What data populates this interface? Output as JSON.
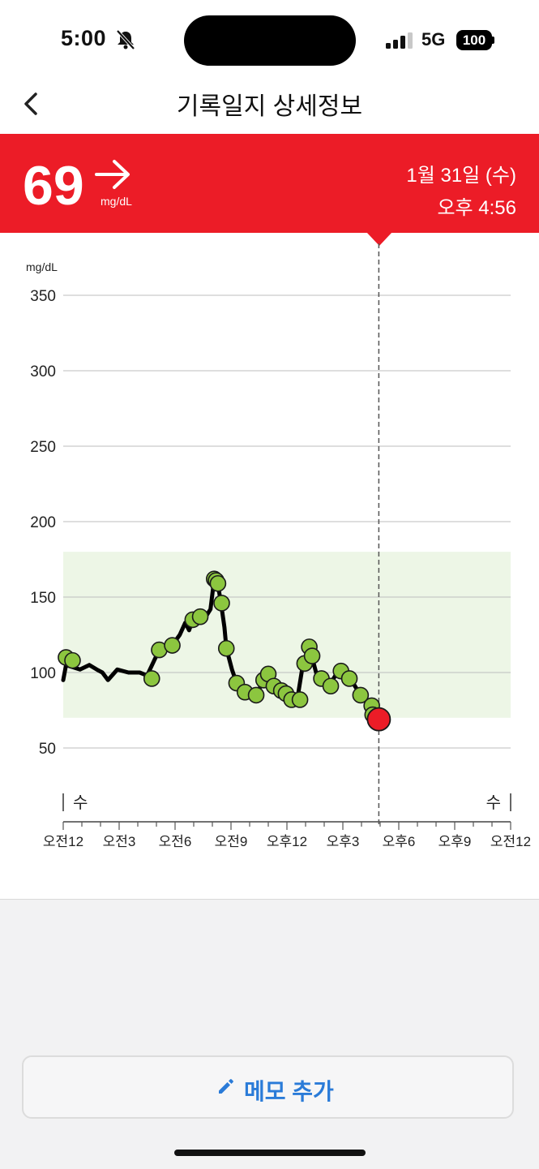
{
  "status": {
    "time": "5:00",
    "network": "5G",
    "battery": "100"
  },
  "nav": {
    "title": "기록일지 상세정보"
  },
  "reading": {
    "value": "69",
    "unit": "mg/dL",
    "trend": "steady",
    "date": "1월 31일 (수)",
    "time": "오후 4:56"
  },
  "colors": {
    "accent": "#ec1c27",
    "target_range": "#edf6e6",
    "point": "#8cc63f",
    "memo": "#2a7bd8"
  },
  "chart_data": {
    "type": "line",
    "ylabel": "mg/dL",
    "ylim": [
      0,
      350
    ],
    "yticks": [
      50,
      100,
      150,
      200,
      250,
      300,
      350
    ],
    "xlim": [
      0,
      24
    ],
    "xticks": [
      0,
      3,
      6,
      9,
      12,
      15,
      18,
      21,
      24
    ],
    "xtick_labels": [
      "오전12",
      "오전3",
      "오전6",
      "오전9",
      "오후12",
      "오후3",
      "오후6",
      "오후9",
      "오전12"
    ],
    "day_labels": [
      "수",
      "수"
    ],
    "target_range": [
      70,
      180
    ],
    "current_marker": {
      "x": 16.93,
      "y": 69
    },
    "line": [
      [
        0,
        95
      ],
      [
        0.15,
        105
      ],
      [
        0.9,
        102
      ],
      [
        1.4,
        105
      ],
      [
        1.8,
        102
      ],
      [
        2.1,
        100
      ],
      [
        2.4,
        95
      ],
      [
        2.9,
        102
      ],
      [
        3.5,
        100
      ],
      [
        4.1,
        100
      ],
      [
        4.5,
        98
      ],
      [
        5.15,
        115
      ],
      [
        5.85,
        118
      ],
      [
        6.25,
        125
      ],
      [
        6.55,
        133
      ],
      [
        6.75,
        128
      ],
      [
        6.95,
        135
      ],
      [
        7.3,
        137
      ],
      [
        7.7,
        138
      ],
      [
        7.9,
        142
      ],
      [
        8.1,
        162
      ],
      [
        8.3,
        158
      ],
      [
        8.45,
        147
      ],
      [
        8.65,
        130
      ],
      [
        8.75,
        116
      ],
      [
        9.05,
        102
      ],
      [
        9.3,
        93
      ],
      [
        9.75,
        87
      ],
      [
        10.35,
        85
      ],
      [
        10.75,
        95
      ],
      [
        11.0,
        99
      ],
      [
        11.3,
        91
      ],
      [
        11.55,
        88
      ],
      [
        11.8,
        86
      ],
      [
        12.05,
        82
      ],
      [
        12.3,
        85
      ],
      [
        12.55,
        82
      ],
      [
        12.85,
        105
      ],
      [
        13.15,
        116
      ],
      [
        13.35,
        110
      ],
      [
        13.65,
        96
      ],
      [
        14.0,
        94
      ],
      [
        14.35,
        93
      ],
      [
        14.6,
        98
      ],
      [
        14.9,
        101
      ],
      [
        15.2,
        100
      ],
      [
        15.45,
        95
      ],
      [
        15.75,
        89
      ],
      [
        16.05,
        88
      ],
      [
        16.35,
        80
      ],
      [
        16.7,
        73
      ],
      [
        16.93,
        69
      ]
    ],
    "points": [
      [
        0.15,
        110
      ],
      [
        0.5,
        108
      ],
      [
        4.75,
        96
      ],
      [
        5.15,
        115
      ],
      [
        5.85,
        118
      ],
      [
        6.95,
        135
      ],
      [
        7.35,
        137
      ],
      [
        8.1,
        162
      ],
      [
        8.2,
        161
      ],
      [
        8.3,
        159
      ],
      [
        8.5,
        146
      ],
      [
        8.75,
        116
      ],
      [
        9.3,
        93
      ],
      [
        9.75,
        87
      ],
      [
        10.35,
        85
      ],
      [
        10.75,
        95
      ],
      [
        11.0,
        99
      ],
      [
        11.3,
        91
      ],
      [
        11.7,
        88
      ],
      [
        11.95,
        86
      ],
      [
        12.25,
        82
      ],
      [
        12.7,
        82
      ],
      [
        12.95,
        106
      ],
      [
        13.2,
        117
      ],
      [
        13.35,
        111
      ],
      [
        13.85,
        96
      ],
      [
        14.35,
        91
      ],
      [
        14.9,
        101
      ],
      [
        15.35,
        96
      ],
      [
        15.95,
        85
      ],
      [
        16.55,
        78
      ],
      [
        16.6,
        72
      ]
    ]
  },
  "memo_button": {
    "label": "메모 추가"
  }
}
